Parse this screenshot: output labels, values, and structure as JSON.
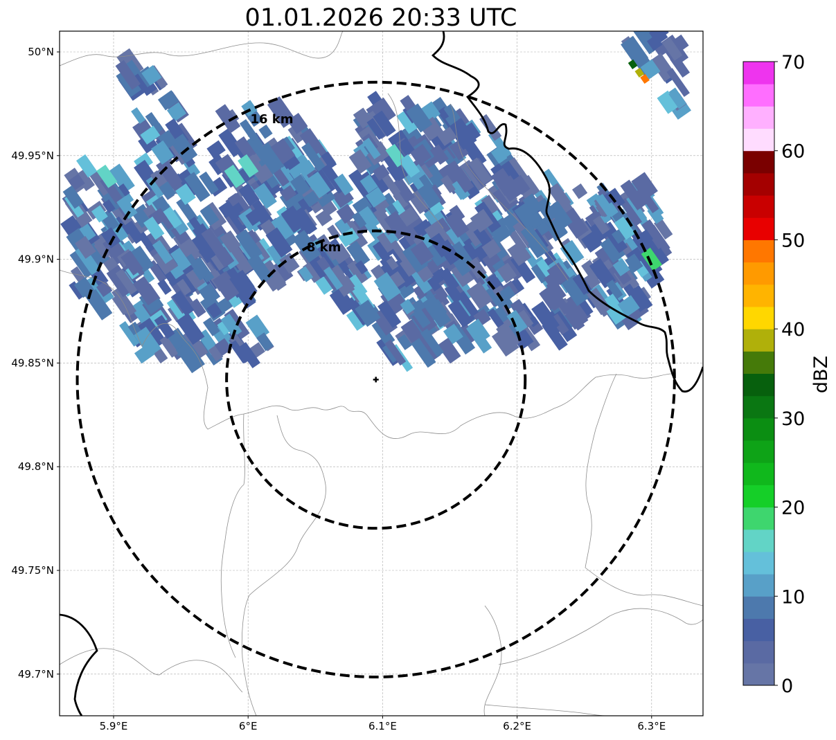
{
  "title": "01.01.2026 20:33 UTC",
  "map": {
    "lon_ticks": [
      {
        "value": 5.9,
        "label": "5.9°E"
      },
      {
        "value": 6.0,
        "label": "6°E"
      },
      {
        "value": 6.1,
        "label": "6.1°E"
      },
      {
        "value": 6.2,
        "label": "6.2°E"
      },
      {
        "value": 6.3,
        "label": "6.3°E"
      }
    ],
    "lat_ticks": [
      {
        "value": 50.0,
        "label": "50°N"
      },
      {
        "value": 49.95,
        "label": "49.95°N"
      },
      {
        "value": 49.9,
        "label": "49.9°N"
      },
      {
        "value": 49.85,
        "label": "49.85°N"
      },
      {
        "value": 49.8,
        "label": "49.8°N"
      },
      {
        "value": 49.75,
        "label": "49.75°N"
      },
      {
        "value": 49.7,
        "label": "49.7°N"
      }
    ],
    "radar_site": {
      "lon": 6.095,
      "lat": 49.842
    },
    "range_rings": [
      {
        "label": "8 km",
        "lat_radius": 0.0717,
        "lon_radius": 0.111
      },
      {
        "label": "16 km",
        "lat_radius": 0.1434,
        "lon_radius": 0.222
      }
    ]
  },
  "colorbar": {
    "label": "dBZ",
    "ticks": [
      "0",
      "10",
      "20",
      "30",
      "40",
      "50",
      "60",
      "70"
    ],
    "colors": [
      "#6675a6",
      "#5a6aa3",
      "#4860a3",
      "#4d79ad",
      "#58a0c8",
      "#64c0da",
      "#62d4c6",
      "#3ed66e",
      "#15cf28",
      "#10b81c",
      "#0ea317",
      "#0b8e12",
      "#0a7712",
      "#07600d",
      "#457a09",
      "#b0b00a",
      "#ffd700",
      "#ffb400",
      "#ff9a00",
      "#ff7700",
      "#e80000",
      "#c90000",
      "#a40000",
      "#7a0000",
      "#ffdcff",
      "#ffb0ff",
      "#ff6eff",
      "#ee34ee"
    ]
  },
  "precipitation": {
    "cells": [
      {
        "lon": 5.88,
        "lat": 49.945,
        "dbz": 14
      },
      {
        "lon": 5.895,
        "lat": 49.94,
        "dbz": 15
      },
      {
        "lon": 5.87,
        "lat": 49.93,
        "dbz": 9
      },
      {
        "lon": 5.91,
        "lat": 49.925,
        "dbz": 11
      },
      {
        "lon": 5.93,
        "lat": 49.915,
        "dbz": 13
      },
      {
        "lon": 5.95,
        "lat": 49.9,
        "dbz": 12
      },
      {
        "lon": 5.99,
        "lat": 49.94,
        "dbz": 17
      },
      {
        "lon": 6.0,
        "lat": 49.945,
        "dbz": 15
      },
      {
        "lon": 6.11,
        "lat": 49.95,
        "dbz": 16
      },
      {
        "lon": 6.12,
        "lat": 49.945,
        "dbz": 14
      },
      {
        "lon": 6.28,
        "lat": 49.915,
        "dbz": 14
      },
      {
        "lon": 6.3,
        "lat": 49.9,
        "dbz": 18
      },
      {
        "lon": 6.09,
        "lat": 49.92,
        "dbz": 11
      },
      {
        "lon": 6.2,
        "lat": 49.87,
        "dbz": 12
      },
      {
        "lon": 6.286,
        "lat": 49.994,
        "dbz": 33
      },
      {
        "lon": 6.291,
        "lat": 49.99,
        "dbz": 38
      },
      {
        "lon": 6.295,
        "lat": 49.987,
        "dbz": 48
      }
    ]
  }
}
